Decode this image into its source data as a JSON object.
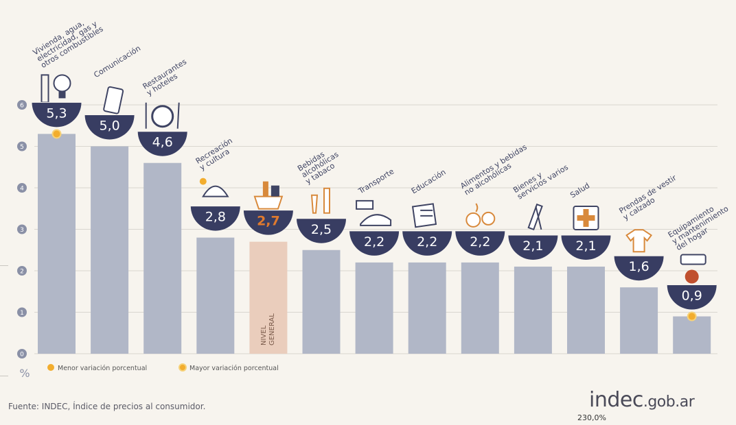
{
  "chart_data": {
    "type": "bar",
    "unit_label": "%",
    "ylim": [
      0,
      6
    ],
    "yticks": [
      "0",
      "1",
      "2",
      "3",
      "4",
      "5",
      "6"
    ],
    "grid": true,
    "categories": [
      "Vivienda, agua, electricidad, gas y otros combustibles",
      "Comunicación",
      "Restaurantes y hoteles",
      "Recreación y cultura",
      "NIVEL GENERAL",
      "Bebidas alcohólicas y tabaco",
      "Transporte",
      "Educación",
      "Alimentos y bebidas no alcohólicas",
      "Bienes y servicios varios",
      "Salud",
      "Prendas de vestir y calzado",
      "Equipamiento y mantenimiento del hogar"
    ],
    "category_lines": [
      [
        "Vivienda, agua,",
        "electricidad, gas y",
        "otros combustibles"
      ],
      [
        "Comunicación"
      ],
      [
        "Restaurantes",
        "y hoteles"
      ],
      [
        "Recreación",
        "y cultura"
      ],
      [],
      [
        "Bebidas",
        "alcohólicas",
        "y tabaco"
      ],
      [
        "Transporte"
      ],
      [
        "Educación"
      ],
      [
        "Alimentos y bebidas",
        "no alcohólicas"
      ],
      [
        "Bienes y",
        "servicios varios"
      ],
      [
        "Salud"
      ],
      [
        "Prendas de vestir",
        "y calzado"
      ],
      [
        "Equipamiento",
        "y mantenimiento",
        "del hogar"
      ]
    ],
    "bar_label_lines": [
      "NIVEL",
      "GENERAL"
    ],
    "values": [
      5.3,
      5.0,
      4.6,
      2.8,
      2.7,
      2.5,
      2.2,
      2.2,
      2.2,
      2.1,
      2.1,
      1.6,
      0.9
    ],
    "value_labels": [
      "5,3",
      "5,0",
      "4,6",
      "2,8",
      "2,7",
      "2,5",
      "2,2",
      "2,2",
      "2,2",
      "2,1",
      "2,1",
      "1,6",
      "0,9"
    ],
    "highlight_index": 4,
    "highest_index": 0,
    "lowest_index": 12,
    "legend": {
      "placement": "bottom-left",
      "items": [
        "Menor variación porcentual",
        "Mayor variación porcentual"
      ]
    },
    "colors": {
      "bar": "#b1b7c7",
      "highlight_bar": "#eacdbc",
      "bubble": "#383d62",
      "bubble_text": "#ffffff",
      "highlight_text": "#e07a2e",
      "marker": "#f2ad2e",
      "grid": "#d9d6cf",
      "axis_tick_bg": "#8a90a6",
      "label": "#3f4463"
    },
    "icons": [
      "house-utilities-icon",
      "phone-icon",
      "plate-cutlery-icon",
      "beach-umbrella-icon",
      "shopping-basket-icon",
      "drinks-cigarette-icon",
      "bus-card-icon",
      "notebook-icon",
      "food-icon",
      "comb-scissors-icon",
      "medical-cross-icon",
      "clothing-icon",
      "air-conditioner-icon"
    ]
  },
  "source": "Fuente: INDEC, Índice de precios al consumidor.",
  "logo": {
    "main": "indec",
    "suffix": ".gob.ar"
  },
  "stray_text": "230,0%"
}
